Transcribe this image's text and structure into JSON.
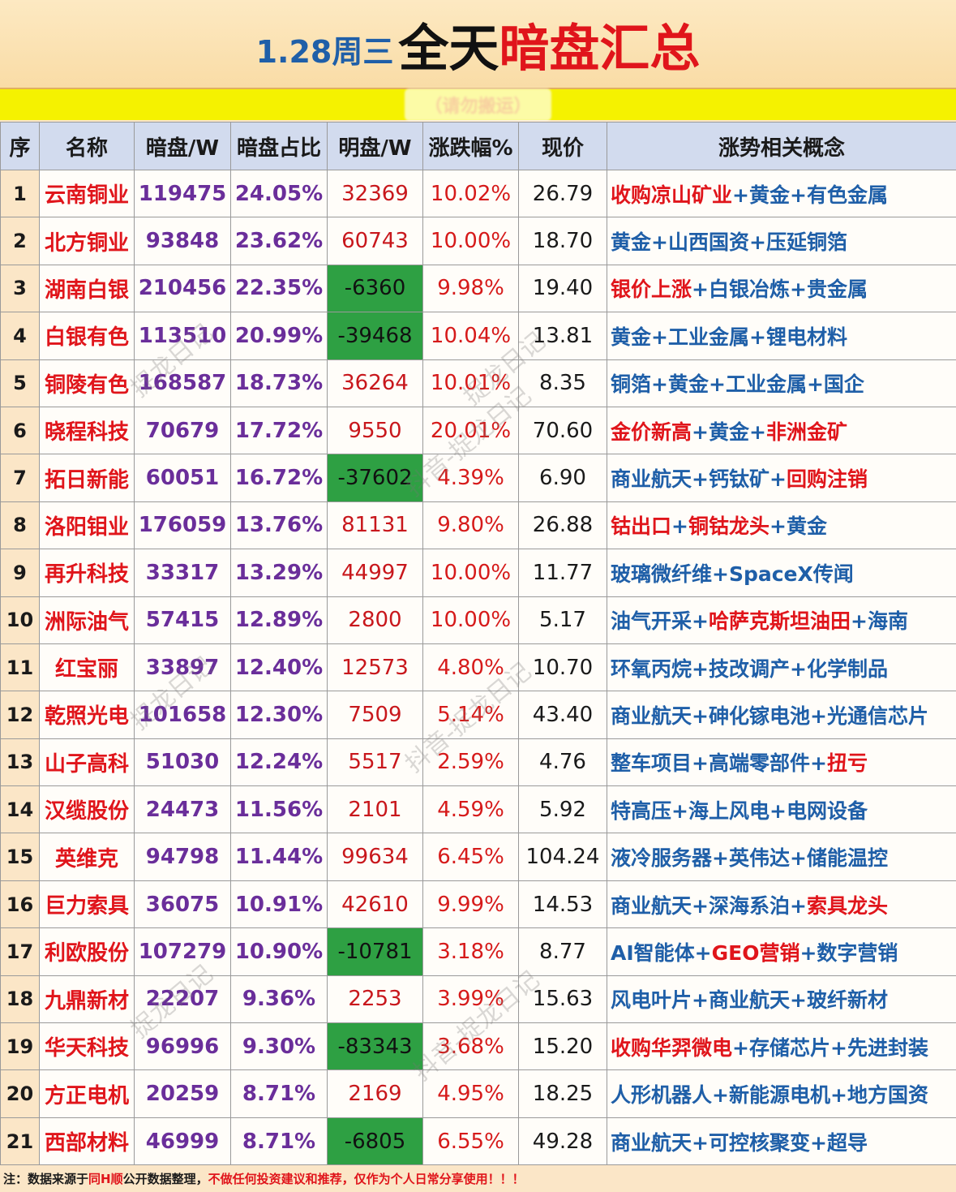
{
  "title": {
    "date": "1.28周三",
    "part1": "全天",
    "part2": "暗盘汇总"
  },
  "banner_text": "（请勿搬运）",
  "headers": [
    "序",
    "名称",
    "暗盘/W",
    "暗盘占比",
    "明盘/W",
    "涨跌幅%",
    "现价",
    "涨势相关概念"
  ],
  "rows": [
    {
      "seq": "1",
      "name": "云南铜业",
      "dark": "119475",
      "ratio": "24.05%",
      "bright": "32369",
      "bright_neg": false,
      "chg": "10.02%",
      "price": "26.79",
      "concepts": [
        {
          "t": "收购凉山矿业",
          "c": "red"
        },
        {
          "t": "+",
          "c": "blue"
        },
        {
          "t": "黄金",
          "c": "blue"
        },
        {
          "t": "+",
          "c": "blue"
        },
        {
          "t": "有色金属",
          "c": "blue"
        }
      ]
    },
    {
      "seq": "2",
      "name": "北方铜业",
      "dark": "93848",
      "ratio": "23.62%",
      "bright": "60743",
      "bright_neg": false,
      "chg": "10.00%",
      "price": "18.70",
      "concepts": [
        {
          "t": "黄金",
          "c": "blue"
        },
        {
          "t": "+",
          "c": "blue"
        },
        {
          "t": "山西国资",
          "c": "blue"
        },
        {
          "t": "+",
          "c": "blue"
        },
        {
          "t": "压延铜箔",
          "c": "blue"
        }
      ]
    },
    {
      "seq": "3",
      "name": "湖南白银",
      "dark": "210456",
      "ratio": "22.35%",
      "bright": "-6360",
      "bright_neg": true,
      "chg": "9.98%",
      "price": "19.40",
      "concepts": [
        {
          "t": "银价上涨",
          "c": "red"
        },
        {
          "t": "+",
          "c": "blue"
        },
        {
          "t": "白银冶炼",
          "c": "blue"
        },
        {
          "t": "+",
          "c": "blue"
        },
        {
          "t": "贵金属",
          "c": "blue"
        }
      ]
    },
    {
      "seq": "4",
      "name": "白银有色",
      "dark": "113510",
      "ratio": "20.99%",
      "bright": "-39468",
      "bright_neg": true,
      "chg": "10.04%",
      "price": "13.81",
      "concepts": [
        {
          "t": "黄金",
          "c": "blue"
        },
        {
          "t": "+",
          "c": "blue"
        },
        {
          "t": "工业金属",
          "c": "blue"
        },
        {
          "t": "+",
          "c": "blue"
        },
        {
          "t": "锂电材料",
          "c": "blue"
        }
      ]
    },
    {
      "seq": "5",
      "name": "铜陵有色",
      "dark": "168587",
      "ratio": "18.73%",
      "bright": "36264",
      "bright_neg": false,
      "chg": "10.01%",
      "price": "8.35",
      "concepts": [
        {
          "t": "铜箔",
          "c": "blue"
        },
        {
          "t": "+",
          "c": "blue"
        },
        {
          "t": "黄金",
          "c": "blue"
        },
        {
          "t": "+",
          "c": "blue"
        },
        {
          "t": "工业金属",
          "c": "blue"
        },
        {
          "t": "+",
          "c": "blue"
        },
        {
          "t": "国企",
          "c": "blue"
        }
      ]
    },
    {
      "seq": "6",
      "name": "晓程科技",
      "dark": "70679",
      "ratio": "17.72%",
      "bright": "9550",
      "bright_neg": false,
      "chg": "20.01%",
      "price": "70.60",
      "concepts": [
        {
          "t": "金价新高",
          "c": "red"
        },
        {
          "t": "+",
          "c": "blue"
        },
        {
          "t": "黄金",
          "c": "blue"
        },
        {
          "t": "+",
          "c": "blue"
        },
        {
          "t": "非洲金矿",
          "c": "red"
        }
      ]
    },
    {
      "seq": "7",
      "name": "拓日新能",
      "dark": "60051",
      "ratio": "16.72%",
      "bright": "-37602",
      "bright_neg": true,
      "chg": "4.39%",
      "price": "6.90",
      "concepts": [
        {
          "t": "商业航天",
          "c": "blue"
        },
        {
          "t": "+",
          "c": "blue"
        },
        {
          "t": "钙钛矿",
          "c": "blue"
        },
        {
          "t": "+",
          "c": "blue"
        },
        {
          "t": "回购注销",
          "c": "red"
        }
      ]
    },
    {
      "seq": "8",
      "name": "洛阳钼业",
      "dark": "176059",
      "ratio": "13.76%",
      "bright": "81131",
      "bright_neg": false,
      "chg": "9.80%",
      "price": "26.88",
      "concepts": [
        {
          "t": "钴出口",
          "c": "red"
        },
        {
          "t": "+",
          "c": "blue"
        },
        {
          "t": "铜钴龙头",
          "c": "red"
        },
        {
          "t": "+",
          "c": "blue"
        },
        {
          "t": "黄金",
          "c": "blue"
        }
      ]
    },
    {
      "seq": "9",
      "name": "再升科技",
      "dark": "33317",
      "ratio": "13.29%",
      "bright": "44997",
      "bright_neg": false,
      "chg": "10.00%",
      "price": "11.77",
      "concepts": [
        {
          "t": "玻璃微纤维",
          "c": "blue"
        },
        {
          "t": "+",
          "c": "blue"
        },
        {
          "t": "SpaceX传闻",
          "c": "blue"
        }
      ]
    },
    {
      "seq": "10",
      "name": "洲际油气",
      "dark": "57415",
      "ratio": "12.89%",
      "bright": "2800",
      "bright_neg": false,
      "chg": "10.00%",
      "price": "5.17",
      "concepts": [
        {
          "t": "油气开采",
          "c": "blue"
        },
        {
          "t": "+",
          "c": "blue"
        },
        {
          "t": "哈萨克斯坦油田",
          "c": "red"
        },
        {
          "t": "+",
          "c": "blue"
        },
        {
          "t": "海南",
          "c": "blue"
        }
      ]
    },
    {
      "seq": "11",
      "name": "红宝丽",
      "dark": "33897",
      "ratio": "12.40%",
      "bright": "12573",
      "bright_neg": false,
      "chg": "4.80%",
      "price": "10.70",
      "concepts": [
        {
          "t": "环氧丙烷",
          "c": "blue"
        },
        {
          "t": "+",
          "c": "blue"
        },
        {
          "t": "技改调产",
          "c": "blue"
        },
        {
          "t": "+",
          "c": "blue"
        },
        {
          "t": "化学制品",
          "c": "blue"
        }
      ]
    },
    {
      "seq": "12",
      "name": "乾照光电",
      "dark": "101658",
      "ratio": "12.30%",
      "bright": "7509",
      "bright_neg": false,
      "chg": "5.14%",
      "price": "43.40",
      "concepts": [
        {
          "t": "商业航天",
          "c": "blue"
        },
        {
          "t": "+",
          "c": "blue"
        },
        {
          "t": "砷化镓电池",
          "c": "blue"
        },
        {
          "t": "+",
          "c": "blue"
        },
        {
          "t": "光通信芯片",
          "c": "blue"
        }
      ]
    },
    {
      "seq": "13",
      "name": "山子高科",
      "dark": "51030",
      "ratio": "12.24%",
      "bright": "5517",
      "bright_neg": false,
      "chg": "2.59%",
      "price": "4.76",
      "concepts": [
        {
          "t": "整车项目",
          "c": "blue"
        },
        {
          "t": "+",
          "c": "blue"
        },
        {
          "t": "高端零部件",
          "c": "blue"
        },
        {
          "t": "+",
          "c": "blue"
        },
        {
          "t": "扭亏",
          "c": "red"
        }
      ]
    },
    {
      "seq": "14",
      "name": "汉缆股份",
      "dark": "24473",
      "ratio": "11.56%",
      "bright": "2101",
      "bright_neg": false,
      "chg": "4.59%",
      "price": "5.92",
      "concepts": [
        {
          "t": "特高压",
          "c": "blue"
        },
        {
          "t": "+",
          "c": "blue"
        },
        {
          "t": "海上风电",
          "c": "blue"
        },
        {
          "t": "+",
          "c": "blue"
        },
        {
          "t": "电网设备",
          "c": "blue"
        }
      ]
    },
    {
      "seq": "15",
      "name": "英维克",
      "dark": "94798",
      "ratio": "11.44%",
      "bright": "99634",
      "bright_neg": false,
      "chg": "6.45%",
      "price": "104.24",
      "concepts": [
        {
          "t": "液冷服务器",
          "c": "blue"
        },
        {
          "t": "+",
          "c": "blue"
        },
        {
          "t": "英伟达",
          "c": "blue"
        },
        {
          "t": "+",
          "c": "blue"
        },
        {
          "t": "储能温控",
          "c": "blue"
        }
      ]
    },
    {
      "seq": "16",
      "name": "巨力索具",
      "dark": "36075",
      "ratio": "10.91%",
      "bright": "42610",
      "bright_neg": false,
      "chg": "9.99%",
      "price": "14.53",
      "concepts": [
        {
          "t": "商业航天",
          "c": "blue"
        },
        {
          "t": "+",
          "c": "blue"
        },
        {
          "t": "深海系泊",
          "c": "blue"
        },
        {
          "t": "+",
          "c": "blue"
        },
        {
          "t": "索具龙头",
          "c": "red"
        }
      ]
    },
    {
      "seq": "17",
      "name": "利欧股份",
      "dark": "107279",
      "ratio": "10.90%",
      "bright": "-10781",
      "bright_neg": true,
      "chg": "3.18%",
      "price": "8.77",
      "concepts": [
        {
          "t": "AI智能体",
          "c": "blue"
        },
        {
          "t": "+",
          "c": "blue"
        },
        {
          "t": "GEO营销",
          "c": "red"
        },
        {
          "t": "+",
          "c": "blue"
        },
        {
          "t": "数字营销",
          "c": "blue"
        }
      ]
    },
    {
      "seq": "18",
      "name": "九鼎新材",
      "dark": "22207",
      "ratio": "9.36%",
      "bright": "2253",
      "bright_neg": false,
      "chg": "3.99%",
      "price": "15.63",
      "concepts": [
        {
          "t": "风电叶片",
          "c": "blue"
        },
        {
          "t": "+",
          "c": "blue"
        },
        {
          "t": "商业航天",
          "c": "blue"
        },
        {
          "t": "+",
          "c": "blue"
        },
        {
          "t": "玻纤新材",
          "c": "blue"
        }
      ]
    },
    {
      "seq": "19",
      "name": "华天科技",
      "dark": "96996",
      "ratio": "9.30%",
      "bright": "-83343",
      "bright_neg": true,
      "chg": "3.68%",
      "price": "15.20",
      "concepts": [
        {
          "t": "收购华羿微电",
          "c": "red"
        },
        {
          "t": "+",
          "c": "blue"
        },
        {
          "t": "存储芯片",
          "c": "blue"
        },
        {
          "t": "+",
          "c": "blue"
        },
        {
          "t": "先进封装",
          "c": "blue"
        }
      ]
    },
    {
      "seq": "20",
      "name": "方正电机",
      "dark": "20259",
      "ratio": "8.71%",
      "bright": "2169",
      "bright_neg": false,
      "chg": "4.95%",
      "price": "18.25",
      "concepts": [
        {
          "t": "人形机器人",
          "c": "blue"
        },
        {
          "t": "+",
          "c": "blue"
        },
        {
          "t": "新能源电机",
          "c": "blue"
        },
        {
          "t": "+",
          "c": "blue"
        },
        {
          "t": "地方国资",
          "c": "blue"
        }
      ]
    },
    {
      "seq": "21",
      "name": "西部材料",
      "dark": "46999",
      "ratio": "8.71%",
      "bright": "-6805",
      "bright_neg": true,
      "chg": "6.55%",
      "price": "49.28",
      "concepts": [
        {
          "t": "商业航天",
          "c": "blue"
        },
        {
          "t": "+",
          "c": "blue"
        },
        {
          "t": "可控核聚变",
          "c": "blue"
        },
        {
          "t": "+",
          "c": "blue"
        },
        {
          "t": "超导",
          "c": "blue"
        }
      ]
    }
  ],
  "footnote": {
    "prefix": "注：数据来源于",
    "source": "同H顺",
    "middle": "公开数据整理，",
    "warning": "不做任何投资建议和推荐，仅作为个人日常分享使用！！！"
  },
  "watermarks": [
    "抖音-捉龙日记",
    "捉龙日记"
  ],
  "colors": {
    "name_red": "#e0151b",
    "dark_purple": "#6a2e9a",
    "concept_blue": "#1f5fa8",
    "neg_green": "#2ea043",
    "header_bg": "#d2dbee",
    "page_bg": "#fbe6c7"
  }
}
